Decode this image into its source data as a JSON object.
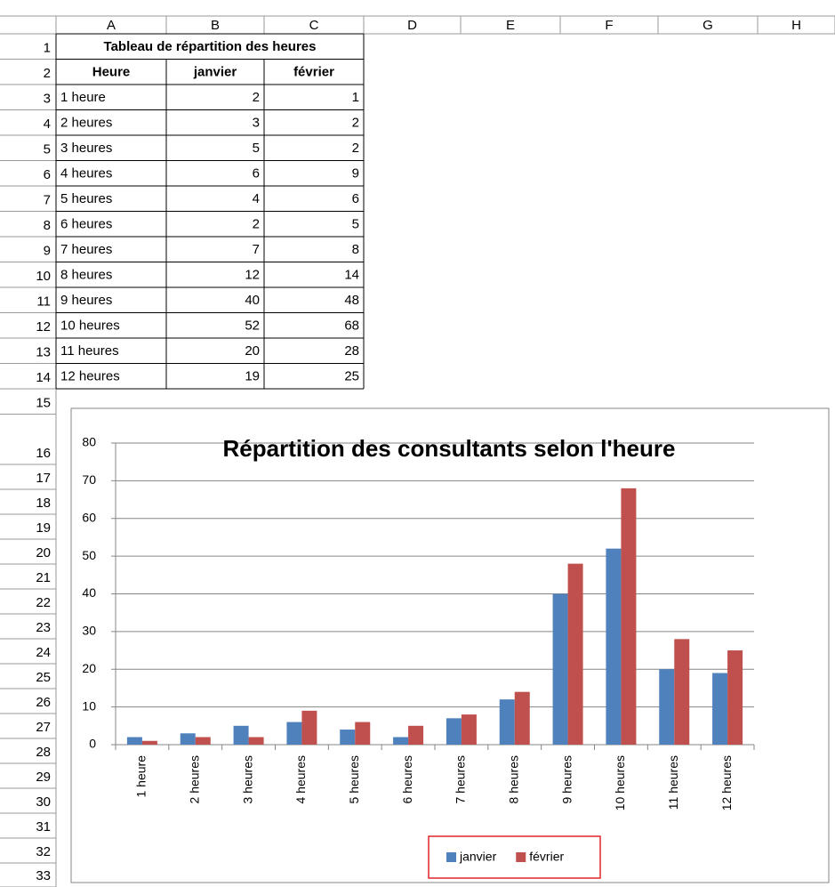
{
  "sheet": {
    "columns": [
      "A",
      "B",
      "C",
      "D",
      "E",
      "F",
      "G",
      "H"
    ],
    "rows": [
      1,
      2,
      3,
      4,
      5,
      6,
      7,
      8,
      9,
      10,
      11,
      12,
      13,
      14,
      15,
      16,
      17,
      18,
      19,
      20,
      21,
      22,
      23,
      24,
      25,
      26,
      27,
      28,
      29,
      30,
      31,
      32,
      33
    ]
  },
  "table": {
    "title": "Tableau de répartition des heures",
    "header": [
      "Heure",
      "janvier",
      "février"
    ],
    "rows": [
      [
        "1 heure",
        2,
        1
      ],
      [
        "2 heures",
        3,
        2
      ],
      [
        "3 heures",
        5,
        2
      ],
      [
        "4 heures",
        6,
        9
      ],
      [
        "5 heures",
        4,
        6
      ],
      [
        "6 heures",
        2,
        5
      ],
      [
        "7 heures",
        7,
        8
      ],
      [
        "8 heures",
        12,
        14
      ],
      [
        "9 heures",
        40,
        48
      ],
      [
        "10 heures",
        52,
        68
      ],
      [
        "11 heures",
        20,
        28
      ],
      [
        "12 heures",
        19,
        25
      ]
    ]
  },
  "chart_data": {
    "type": "bar",
    "title": "Répartition des consultants selon l'heure",
    "categories": [
      "1 heure",
      "2 heures",
      "3 heures",
      "4 heures",
      "5 heures",
      "6 heures",
      "7 heures",
      "8 heures",
      "9 heures",
      "10 heures",
      "11 heures",
      "12 heures"
    ],
    "series": [
      {
        "name": "janvier",
        "color": "#4f81bd",
        "values": [
          2,
          3,
          5,
          6,
          4,
          2,
          7,
          12,
          40,
          52,
          20,
          19
        ]
      },
      {
        "name": "février",
        "color": "#c0504d",
        "values": [
          1,
          2,
          2,
          9,
          6,
          5,
          8,
          14,
          48,
          68,
          28,
          25
        ]
      }
    ],
    "ylim": [
      0,
      80
    ],
    "yticks": [
      0,
      10,
      20,
      30,
      40,
      50,
      60,
      70,
      80
    ],
    "grid": true,
    "legend": "bottom"
  }
}
